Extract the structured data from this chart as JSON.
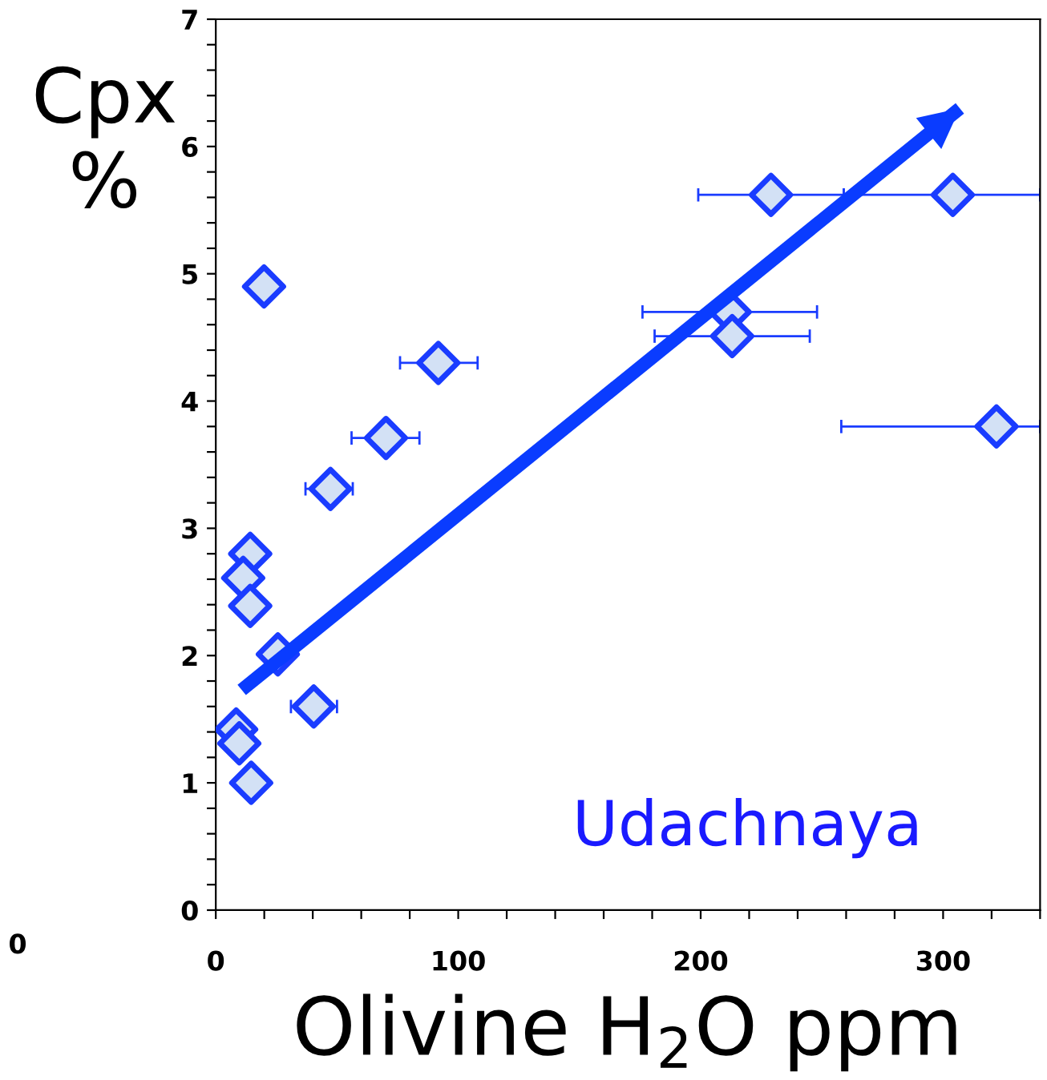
{
  "chart_data": {
    "type": "scatter",
    "xlabel": "Olivine H$_{2}$O ppm",
    "ylabel": "Cpx\n%",
    "series": [
      {
        "color": "#1a3cff",
        "marker": "diamond",
        "x": [
          19.9,
          91.8,
          70.2,
          47.3,
          14.2,
          11.3,
          14.2,
          25.6,
          40.4,
          8.4,
          9.7,
          14.6,
          229,
          304,
          212,
          213,
          322
        ],
        "values": [
          4.9,
          4.3,
          3.71,
          3.31,
          2.8,
          2.61,
          2.39,
          2.01,
          1.6,
          1.42,
          1.31,
          1.0,
          5.62,
          5.62,
          4.7,
          4.51,
          3.8
        ],
        "xerrors": [
          null,
          [
            76,
            108
          ],
          [
            56,
            84
          ],
          [
            37,
            56.5
          ],
          null,
          null,
          null,
          null,
          [
            31,
            50
          ],
          null,
          null,
          null,
          [
            199,
            259
          ],
          [
            259,
            340
          ],
          [
            176,
            248
          ],
          [
            181,
            245
          ],
          [
            258,
            340
          ]
        ]
      },
      {
        "type": "line",
        "color": "#0a3cff",
        "x": [
          10.7,
          306.9
        ],
        "values": [
          1.73,
          6.3
        ]
      }
    ],
    "xlim": [
      0,
      340
    ],
    "xticks": [
      0,
      {
        "value": 20,
        "label": null
      },
      {
        "value": 40,
        "label": null
      },
      {
        "value": 60,
        "label": null
      },
      {
        "value": 80,
        "label": null
      },
      100,
      {
        "value": 120,
        "label": null
      },
      {
        "value": 140,
        "label": null
      },
      {
        "value": 160,
        "label": null
      },
      {
        "value": 180,
        "label": null
      },
      200,
      {
        "value": 220,
        "label": null
      },
      {
        "value": 240,
        "label": null
      },
      {
        "value": 260,
        "label": null
      },
      {
        "value": 280,
        "label": null
      },
      300,
      {
        "value": 320,
        "label": null
      },
      {
        "value": 340,
        "label": null
      }
    ],
    "ylim": [
      0,
      7
    ],
    "yticks": [
      0,
      {
        "value": 0.2,
        "label": null
      },
      {
        "value": 0.4,
        "label": null
      },
      {
        "value": 0.6,
        "label": null
      },
      {
        "value": 0.8,
        "label": null
      },
      1,
      {
        "value": 1.2,
        "label": null
      },
      {
        "value": 1.4,
        "label": null
      },
      {
        "value": 1.6,
        "label": null
      },
      {
        "value": 1.8,
        "label": null
      },
      2,
      {
        "value": 2.2,
        "label": null
      },
      {
        "value": 2.4,
        "label": null
      },
      {
        "value": 2.6,
        "label": null
      },
      {
        "value": 2.8,
        "label": null
      },
      3,
      {
        "value": 3.2,
        "label": null
      },
      {
        "value": 3.4,
        "label": null
      },
      {
        "value": 3.6,
        "label": null
      },
      {
        "value": 3.8,
        "label": null
      },
      4,
      {
        "value": 4.2,
        "label": null
      },
      {
        "value": 4.4,
        "label": null
      },
      {
        "value": 4.6,
        "label": null
      },
      {
        "value": 4.8,
        "label": null
      },
      5,
      {
        "value": 5.2,
        "label": null
      },
      {
        "value": 5.4,
        "label": null
      },
      {
        "value": 5.6,
        "label": null
      },
      {
        "value": 5.8,
        "label": null
      },
      6,
      {
        "value": 6.2,
        "label": null
      },
      {
        "value": 6.4,
        "label": null
      },
      {
        "value": 6.6,
        "label": null
      },
      {
        "value": 6.8,
        "label": null
      },
      7
    ],
    "grid": false,
    "legend": false,
    "annotations": [
      "Udachnaya",
      "0"
    ]
  }
}
